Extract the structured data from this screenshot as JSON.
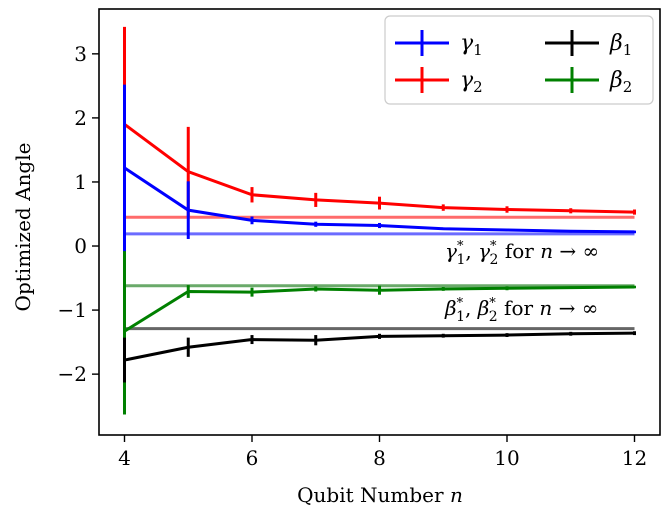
{
  "chart_data": {
    "type": "line",
    "title": "",
    "xlabel": "Qubit Number",
    "xlabel_var": "n",
    "ylabel": "Optimized Angle",
    "xlim": [
      3.6,
      12.4
    ],
    "ylim": [
      -2.95,
      3.7
    ],
    "xticks": [
      4,
      6,
      8,
      10,
      12
    ],
    "yticks": [
      -2,
      -1,
      0,
      1,
      2,
      3
    ],
    "grid": false,
    "legend_position": "top-right",
    "x": [
      4,
      5,
      6,
      7,
      8,
      9,
      10,
      11,
      12
    ],
    "series": [
      {
        "name": "γ1",
        "sym": "γ",
        "sub": "1",
        "color": "#0000ff",
        "values": [
          1.22,
          0.56,
          0.4,
          0.34,
          0.32,
          0.27,
          0.25,
          0.23,
          0.22
        ],
        "errors": [
          1.3,
          0.45,
          0.06,
          0.04,
          0.04,
          0.02,
          0.02,
          0.02,
          0.02
        ]
      },
      {
        "name": "γ2",
        "sym": "γ",
        "sub": "2",
        "color": "#ff0000",
        "values": [
          1.9,
          1.16,
          0.8,
          0.72,
          0.67,
          0.6,
          0.57,
          0.55,
          0.53
        ],
        "errors": [
          1.52,
          0.7,
          0.12,
          0.11,
          0.1,
          0.05,
          0.05,
          0.04,
          0.04
        ]
      },
      {
        "name": "β1",
        "sym": "β",
        "sub": "1",
        "color": "#000000",
        "values": [
          -1.78,
          -1.58,
          -1.46,
          -1.47,
          -1.41,
          -1.4,
          -1.39,
          -1.37,
          -1.36
        ],
        "errors": [
          0.35,
          0.15,
          0.07,
          0.08,
          0.04,
          0.03,
          0.03,
          0.03,
          0.03
        ]
      },
      {
        "name": "β2",
        "sym": "β",
        "sub": "2",
        "color": "#008000",
        "values": [
          -1.33,
          -0.71,
          -0.72,
          -0.67,
          -0.69,
          -0.67,
          -0.66,
          -0.65,
          -0.64
        ],
        "errors": [
          1.3,
          0.1,
          0.07,
          0.04,
          0.07,
          0.03,
          0.03,
          0.02,
          0.02
        ]
      }
    ],
    "limits": [
      {
        "value": 0.19,
        "color": "#6b6bff"
      },
      {
        "value": 0.45,
        "color": "#ff6b6b"
      },
      {
        "value": -0.62,
        "color": "#6aaa6a"
      },
      {
        "value": -1.29,
        "color": "#666666"
      }
    ],
    "annotations": {
      "gamma": {
        "prefix": "γ",
        "sub1": "1",
        "star": "*",
        "comma": ", ",
        "sub2": "2",
        "suffix": " for ",
        "var": "n",
        "arrow": " → ∞"
      },
      "beta": {
        "prefix": "β",
        "sub1": "1",
        "star": "*",
        "comma": ", ",
        "sub2": "2",
        "suffix": " for ",
        "var": "n",
        "arrow": " → ∞"
      }
    }
  }
}
